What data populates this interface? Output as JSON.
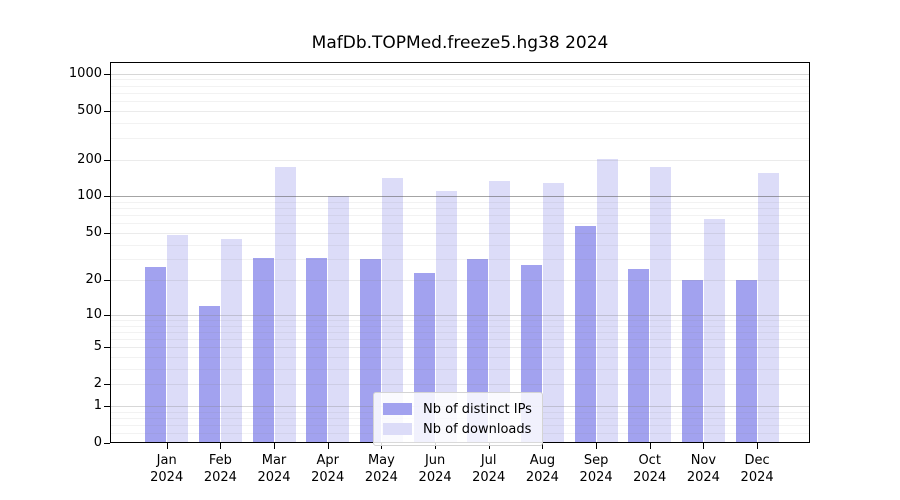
{
  "window": {
    "background": "#ffffff"
  },
  "chart_data": {
    "type": "bar",
    "title": "MafDb.TOPMed.freeze5.hg38 2024",
    "scale": "log1p",
    "grid": true,
    "legend_position": "lower center",
    "categories": [
      "Jan",
      "Feb",
      "Mar",
      "Apr",
      "May",
      "Jun",
      "Jul",
      "Aug",
      "Sep",
      "Oct",
      "Nov",
      "Dec"
    ],
    "year_label": "2024",
    "series": [
      {
        "name": "Nb of distinct IPs",
        "color": "#a2a2ef",
        "values": [
          26,
          12,
          31,
          31,
          30,
          23,
          30,
          27,
          57,
          25,
          20,
          20
        ]
      },
      {
        "name": "Nb of downloads",
        "color": "#dcdcf8",
        "values": [
          48,
          44,
          175,
          100,
          140,
          110,
          133,
          128,
          200,
          175,
          65,
          155
        ]
      }
    ],
    "y_ticks": [
      0,
      1,
      2,
      5,
      10,
      20,
      50,
      100,
      200,
      500,
      1000
    ],
    "minor_gridlines": [
      0.2,
      0.4,
      0.6,
      0.8,
      3,
      4,
      6,
      7,
      8,
      9,
      30,
      40,
      60,
      70,
      80,
      90,
      300,
      400,
      600,
      700,
      800,
      900
    ],
    "ylim": [
      0,
      1250
    ],
    "xlabel": "",
    "ylabel": ""
  },
  "colors": {
    "axis": "#000000",
    "grid_minor": "rgba(130,130,130,0.10)",
    "grid_tick": "rgba(130,130,130,0.16)",
    "grid_decade": "rgba(130,130,130,0.32)",
    "grid_hundred": "rgba(90,90,90,0.55)"
  }
}
